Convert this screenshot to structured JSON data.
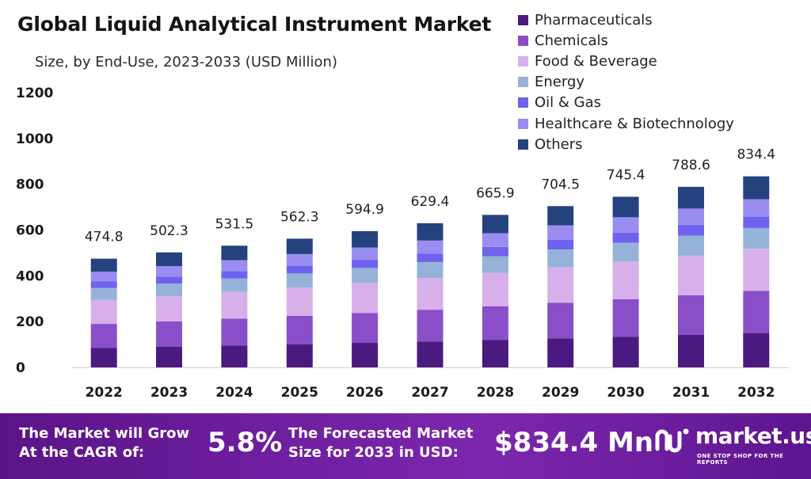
{
  "chart_data": {
    "type": "bar",
    "stacked": true,
    "title": "Global Liquid Analytical Instrument Market",
    "subtitle": "Size, by End-Use, 2023-2033 (USD Million)",
    "xlabel": "",
    "ylabel": "",
    "ylim": [
      0,
      1200
    ],
    "yticks": [
      0,
      200,
      400,
      600,
      800,
      1000,
      1200
    ],
    "grid": false,
    "legend_position": "top-right",
    "categories": [
      "2022",
      "2023",
      "2024",
      "2025",
      "2026",
      "2027",
      "2028",
      "2029",
      "2030",
      "2031",
      "2032"
    ],
    "totals": [
      474.8,
      502.3,
      531.5,
      562.3,
      594.9,
      629.4,
      665.9,
      704.5,
      745.4,
      788.6,
      834.4
    ],
    "total_labels": [
      "474.8",
      "502.3",
      "531.5",
      "562.3",
      "594.9",
      "629.4",
      "665.9",
      "704.5",
      "745.4",
      "788.6",
      "834.4"
    ],
    "series": [
      {
        "name": "Pharmaceuticals",
        "color": "#4a1a80",
        "values": [
          85.5,
          90.4,
          95.7,
          101.2,
          107.1,
          113.3,
          119.9,
          126.8,
          134.2,
          141.9,
          150.2
        ]
      },
      {
        "name": "Chemicals",
        "color": "#8a4fc8",
        "values": [
          104.5,
          110.5,
          116.9,
          123.7,
          130.9,
          138.5,
          146.5,
          155.0,
          164.0,
          173.5,
          183.6
        ]
      },
      {
        "name": "Food & Beverage",
        "color": "#d7b0ea",
        "values": [
          104.5,
          110.5,
          116.9,
          123.7,
          130.9,
          138.5,
          146.5,
          155.0,
          164.0,
          173.5,
          183.6
        ]
      },
      {
        "name": "Energy",
        "color": "#95b2d8",
        "values": [
          52.2,
          55.3,
          58.5,
          61.9,
          65.4,
          69.2,
          73.2,
          77.5,
          82.0,
          86.7,
          91.8
        ]
      },
      {
        "name": "Oil & Gas",
        "color": "#6e62ee",
        "values": [
          28.5,
          30.1,
          31.9,
          33.7,
          35.7,
          37.8,
          40.0,
          42.3,
          44.7,
          47.3,
          50.1
        ]
      },
      {
        "name": "Healthcare & Biotechnology",
        "color": "#9a8df2",
        "values": [
          42.7,
          45.2,
          47.8,
          50.6,
          53.5,
          56.6,
          59.9,
          63.4,
          67.1,
          71.0,
          75.1
        ]
      },
      {
        "name": "Others",
        "color": "#24427e",
        "values": [
          56.9,
          60.3,
          63.8,
          67.5,
          71.4,
          75.5,
          79.9,
          84.5,
          89.4,
          94.7,
          100.0
        ]
      }
    ]
  },
  "footer": {
    "cagr_label_line1": "The Market will Grow",
    "cagr_label_line2": "At the CAGR of:",
    "cagr_value": "5.8%",
    "forecast_label_line1": "The Forecasted Market",
    "forecast_label_line2": "Size for 2033 in USD:",
    "forecast_value": "$834.4 Mn",
    "brand_name": "market.us",
    "brand_tagline": "ONE STOP SHOP FOR THE REPORTS",
    "background_color": "#6a1b9a"
  }
}
